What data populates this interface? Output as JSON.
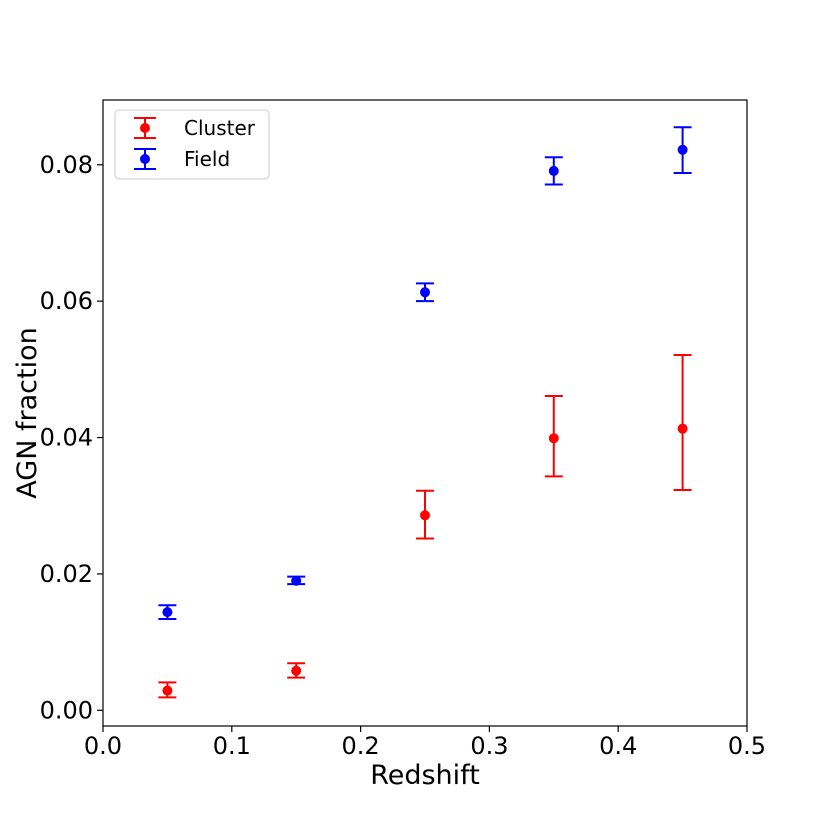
{
  "chart_data": {
    "type": "scatter",
    "xlabel": "Redshift",
    "ylabel": "AGN fraction",
    "xlim": [
      0.0,
      0.5
    ],
    "ylim": [
      -0.0023,
      0.0895
    ],
    "xticks": [
      "0.0",
      "0.1",
      "0.2",
      "0.3",
      "0.4",
      "0.5"
    ],
    "yticks": [
      "0.00",
      "0.02",
      "0.04",
      "0.06",
      "0.08"
    ],
    "grid": false,
    "legend": "top-left",
    "series": [
      {
        "name": "Cluster",
        "color": "#ff0000",
        "points": [
          {
            "x": 0.05,
            "y": 0.0029,
            "lo": 0.0019,
            "hi": 0.0041
          },
          {
            "x": 0.15,
            "y": 0.0058,
            "lo": 0.0048,
            "hi": 0.0069
          },
          {
            "x": 0.25,
            "y": 0.0286,
            "lo": 0.0252,
            "hi": 0.0322
          },
          {
            "x": 0.35,
            "y": 0.0399,
            "lo": 0.0343,
            "hi": 0.0461
          },
          {
            "x": 0.45,
            "y": 0.0413,
            "lo": 0.0323,
            "hi": 0.0521
          }
        ]
      },
      {
        "name": "Field",
        "color": "#0000ff",
        "points": [
          {
            "x": 0.05,
            "y": 0.0144,
            "lo": 0.0134,
            "hi": 0.0154
          },
          {
            "x": 0.15,
            "y": 0.019,
            "lo": 0.0185,
            "hi": 0.0196
          },
          {
            "x": 0.25,
            "y": 0.0613,
            "lo": 0.06,
            "hi": 0.0626
          },
          {
            "x": 0.35,
            "y": 0.0791,
            "lo": 0.0771,
            "hi": 0.0811
          },
          {
            "x": 0.45,
            "y": 0.0822,
            "lo": 0.0788,
            "hi": 0.0855
          }
        ]
      }
    ]
  }
}
